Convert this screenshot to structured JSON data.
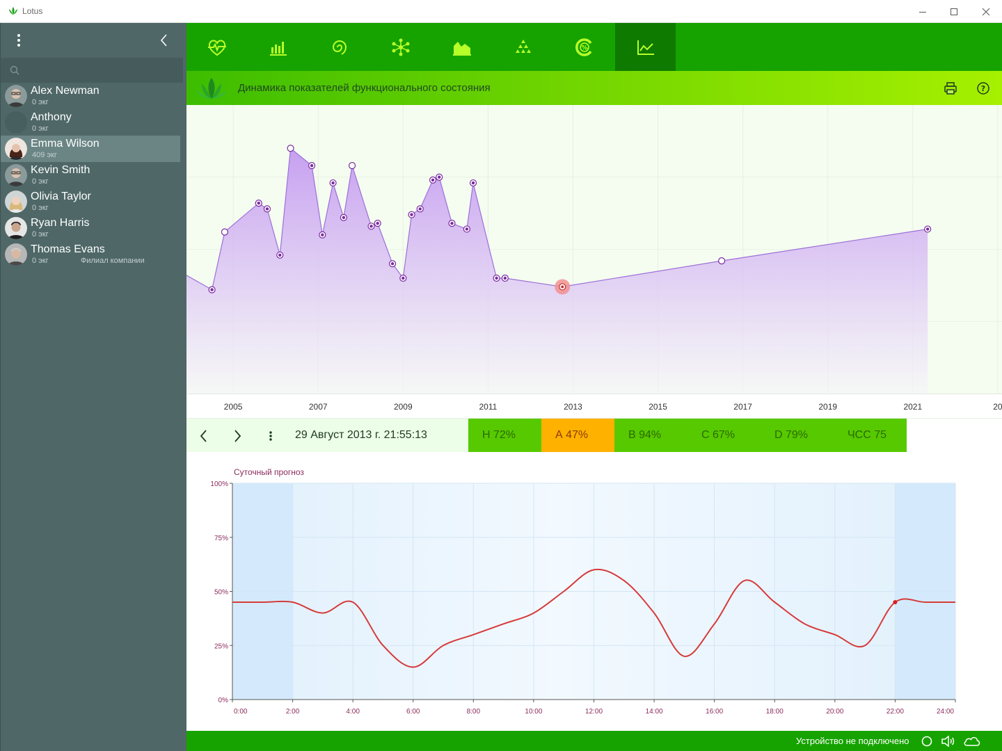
{
  "window": {
    "title": "Lotus"
  },
  "sidebar": {
    "search_placeholder": "",
    "users": [
      {
        "name": "Alex Newman",
        "sub": "0 экг",
        "extra": "",
        "avatar": "man-glasses"
      },
      {
        "name": "Anthony",
        "sub": "0 экг",
        "extra": "",
        "avatar": "blank"
      },
      {
        "name": "Emma Wilson",
        "sub": "409 экг",
        "extra": "",
        "avatar": "woman-dark-hair",
        "selected": true
      },
      {
        "name": "Kevin Smith",
        "sub": "0 экг",
        "extra": "",
        "avatar": "man-glasses"
      },
      {
        "name": "Olivia Taylor",
        "sub": "0 экг",
        "extra": "",
        "avatar": "woman-blonde"
      },
      {
        "name": "Ryan Harris",
        "sub": "0 экг",
        "extra": "",
        "avatar": "man-dark"
      },
      {
        "name": "Thomas Evans",
        "sub": "0 экг",
        "extra": "Филиал компании",
        "avatar": "man-grey"
      }
    ]
  },
  "toolbar": {
    "tools": [
      {
        "icon": "heart-pulse-icon"
      },
      {
        "icon": "bar-chart-icon"
      },
      {
        "icon": "spiral-icon"
      },
      {
        "icon": "network-icon"
      },
      {
        "icon": "area-chart-icon"
      },
      {
        "icon": "pyramid-icon"
      },
      {
        "icon": "percent-ring-icon"
      },
      {
        "icon": "line-trend-icon",
        "active": true
      }
    ]
  },
  "header": {
    "title": "Динамика показателей функционального состояния"
  },
  "colors": {
    "toolbar_green": "#16a300",
    "area_fill": "#c9a8f2",
    "area_line": "#9d6fd8",
    "point_purple": "#7a2aa0",
    "selected_point": "#f08a8a",
    "forecast_line": "#d63a3a",
    "metric_ok": "#57c900",
    "metric_warn": "#ffb100"
  },
  "chart_data": [
    {
      "type": "area",
      "x_ticks": [
        "2005",
        "2007",
        "2009",
        "2011",
        "2013",
        "2015",
        "2017",
        "2019",
        "2021",
        "20"
      ],
      "xlim": [
        2003.9,
        2023.1
      ],
      "ylim": [
        0,
        100
      ],
      "grid": true,
      "points": [
        {
          "x": 2003.9,
          "y": 41,
          "style": "none"
        },
        {
          "x": 2004.5,
          "y": 36,
          "style": "filled"
        },
        {
          "x": 2004.8,
          "y": 56,
          "style": "hollow"
        },
        {
          "x": 2005.6,
          "y": 66,
          "style": "filled"
        },
        {
          "x": 2005.8,
          "y": 64,
          "style": "filled"
        },
        {
          "x": 2006.1,
          "y": 48,
          "style": "filled"
        },
        {
          "x": 2006.35,
          "y": 85,
          "style": "hollow"
        },
        {
          "x": 2006.85,
          "y": 79,
          "style": "filled"
        },
        {
          "x": 2007.1,
          "y": 55,
          "style": "filled"
        },
        {
          "x": 2007.35,
          "y": 73,
          "style": "filled"
        },
        {
          "x": 2007.6,
          "y": 61,
          "style": "filled"
        },
        {
          "x": 2007.8,
          "y": 79,
          "style": "hollow"
        },
        {
          "x": 2008.25,
          "y": 58,
          "style": "filled"
        },
        {
          "x": 2008.4,
          "y": 59,
          "style": "filled"
        },
        {
          "x": 2008.75,
          "y": 45,
          "style": "filled"
        },
        {
          "x": 2009.0,
          "y": 40,
          "style": "filled"
        },
        {
          "x": 2009.2,
          "y": 62,
          "style": "filled"
        },
        {
          "x": 2009.4,
          "y": 64,
          "style": "filled"
        },
        {
          "x": 2009.7,
          "y": 74,
          "style": "filled"
        },
        {
          "x": 2009.85,
          "y": 75,
          "style": "filled"
        },
        {
          "x": 2010.15,
          "y": 59,
          "style": "filled"
        },
        {
          "x": 2010.5,
          "y": 57,
          "style": "filled"
        },
        {
          "x": 2010.65,
          "y": 73,
          "style": "filled"
        },
        {
          "x": 2011.2,
          "y": 40,
          "style": "filled"
        },
        {
          "x": 2011.4,
          "y": 40,
          "style": "filled"
        },
        {
          "x": 2012.75,
          "y": 37,
          "style": "selected"
        },
        {
          "x": 2016.5,
          "y": 46,
          "style": "hollow"
        },
        {
          "x": 2021.35,
          "y": 57,
          "style": "filled"
        }
      ]
    },
    {
      "type": "line",
      "title": "Суточный прогноз",
      "x_ticks": [
        "0:00",
        "2:00",
        "4:00",
        "6:00",
        "8:00",
        "10:00",
        "12:00",
        "14:00",
        "16:00",
        "18:00",
        "20:00",
        "22:00",
        "24:00"
      ],
      "y_ticks": [
        "100%",
        "75%",
        "50%",
        "25%",
        "0%"
      ],
      "xlim": [
        0,
        24
      ],
      "ylim": [
        0,
        100
      ],
      "grid": true,
      "marker": {
        "x": 22,
        "y": 45
      },
      "points": [
        {
          "x": 0,
          "y": 45
        },
        {
          "x": 1,
          "y": 45
        },
        {
          "x": 2,
          "y": 45
        },
        {
          "x": 3,
          "y": 40
        },
        {
          "x": 4,
          "y": 45
        },
        {
          "x": 5,
          "y": 25
        },
        {
          "x": 6,
          "y": 15
        },
        {
          "x": 7,
          "y": 25
        },
        {
          "x": 8,
          "y": 30
        },
        {
          "x": 9,
          "y": 35
        },
        {
          "x": 10,
          "y": 40
        },
        {
          "x": 11,
          "y": 50
        },
        {
          "x": 12,
          "y": 60
        },
        {
          "x": 13,
          "y": 55
        },
        {
          "x": 14,
          "y": 40
        },
        {
          "x": 15,
          "y": 20
        },
        {
          "x": 16,
          "y": 35
        },
        {
          "x": 17,
          "y": 55
        },
        {
          "x": 18,
          "y": 45
        },
        {
          "x": 19,
          "y": 35
        },
        {
          "x": 20,
          "y": 30
        },
        {
          "x": 21,
          "y": 25
        },
        {
          "x": 22,
          "y": 45
        },
        {
          "x": 23,
          "y": 45
        },
        {
          "x": 24,
          "y": 45
        }
      ]
    }
  ],
  "result_bar": {
    "date": "29 Август 2013 г. 21:55:13",
    "metrics": [
      {
        "label": "Н  72%",
        "status": "ok"
      },
      {
        "label": "А  47%",
        "status": "warn"
      },
      {
        "label": "В  94%",
        "status": "ok"
      },
      {
        "label": "С  67%",
        "status": "ok"
      },
      {
        "label": "D  79%",
        "status": "ok"
      },
      {
        "label": "ЧСС 75",
        "status": "ok"
      }
    ]
  },
  "status_bar": {
    "text": "Устройство не подключено"
  }
}
